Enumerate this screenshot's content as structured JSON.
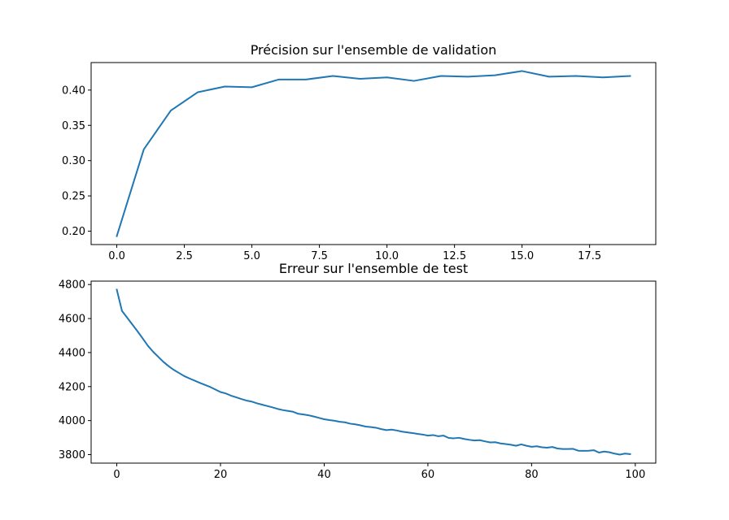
{
  "chart_data": [
    {
      "type": "line",
      "title": "Précision sur l'ensemble de validation",
      "xlim": [
        -0.95,
        19.95
      ],
      "ylim": [
        0.181,
        0.439
      ],
      "xticks": [
        0,
        2.5,
        5,
        7.5,
        10,
        12.5,
        15,
        17.5
      ],
      "xtick_labels": [
        "0.0",
        "2.5",
        "5.0",
        "7.5",
        "10.0",
        "12.5",
        "15.0",
        "17.5"
      ],
      "yticks": [
        0.2,
        0.25,
        0.3,
        0.35,
        0.4
      ],
      "ytick_labels": [
        "0.20",
        "0.25",
        "0.30",
        "0.35",
        "0.40"
      ],
      "grid": false,
      "color": "#1f77b4",
      "x": [
        0,
        1,
        2,
        3,
        4,
        5,
        6,
        7,
        8,
        9,
        10,
        11,
        12,
        13,
        14,
        15,
        16,
        17,
        18,
        19
      ],
      "y": [
        0.193,
        0.316,
        0.371,
        0.397,
        0.405,
        0.404,
        0.415,
        0.415,
        0.42,
        0.416,
        0.418,
        0.413,
        0.42,
        0.419,
        0.421,
        0.427,
        0.419,
        0.42,
        0.418,
        0.42
      ]
    },
    {
      "type": "line",
      "title": "Erreur sur l'ensemble de test",
      "xlim": [
        -4.95,
        103.95
      ],
      "ylim": [
        3750,
        4820
      ],
      "xticks": [
        0,
        20,
        40,
        60,
        80,
        100
      ],
      "xtick_labels": [
        "0",
        "20",
        "40",
        "60",
        "80",
        "100"
      ],
      "yticks": [
        3800,
        4000,
        4200,
        4400,
        4600,
        4800
      ],
      "ytick_labels": [
        "3800",
        "4000",
        "4200",
        "4400",
        "4600",
        "4800"
      ],
      "grid": false,
      "color": "#1f77b4",
      "x": [
        0,
        1,
        2,
        3,
        4,
        5,
        6,
        7,
        8,
        9,
        10,
        11,
        12,
        13,
        14,
        15,
        16,
        17,
        18,
        19,
        20,
        21,
        22,
        23,
        24,
        25,
        26,
        27,
        28,
        29,
        30,
        31,
        32,
        33,
        34,
        35,
        36,
        37,
        38,
        39,
        40,
        41,
        42,
        43,
        44,
        45,
        46,
        47,
        48,
        49,
        50,
        51,
        52,
        53,
        54,
        55,
        56,
        57,
        58,
        59,
        60,
        61,
        62,
        63,
        64,
        65,
        66,
        67,
        68,
        69,
        70,
        71,
        72,
        73,
        74,
        75,
        76,
        77,
        78,
        79,
        80,
        81,
        82,
        83,
        84,
        85,
        86,
        87,
        88,
        89,
        90,
        91,
        92,
        93,
        94,
        95,
        96,
        97,
        98,
        99
      ],
      "y": [
        4770,
        4645,
        4605,
        4565,
        4525,
        4483,
        4440,
        4405,
        4375,
        4345,
        4320,
        4298,
        4280,
        4262,
        4248,
        4235,
        4222,
        4210,
        4198,
        4183,
        4168,
        4160,
        4147,
        4137,
        4127,
        4118,
        4112,
        4102,
        4094,
        4086,
        4078,
        4069,
        4062,
        4057,
        4052,
        4040,
        4036,
        4031,
        4024,
        4016,
        4008,
        4003,
        3999,
        3993,
        3990,
        3982,
        3978,
        3972,
        3965,
        3962,
        3958,
        3950,
        3944,
        3947,
        3942,
        3935,
        3931,
        3927,
        3922,
        3918,
        3912,
        3915,
        3908,
        3912,
        3898,
        3896,
        3899,
        3892,
        3887,
        3883,
        3885,
        3878,
        3872,
        3873,
        3866,
        3862,
        3858,
        3852,
        3860,
        3852,
        3846,
        3849,
        3843,
        3841,
        3845,
        3836,
        3833,
        3833,
        3834,
        3823,
        3822,
        3823,
        3826,
        3812,
        3818,
        3814,
        3806,
        3800,
        3806,
        3803
      ]
    }
  ]
}
